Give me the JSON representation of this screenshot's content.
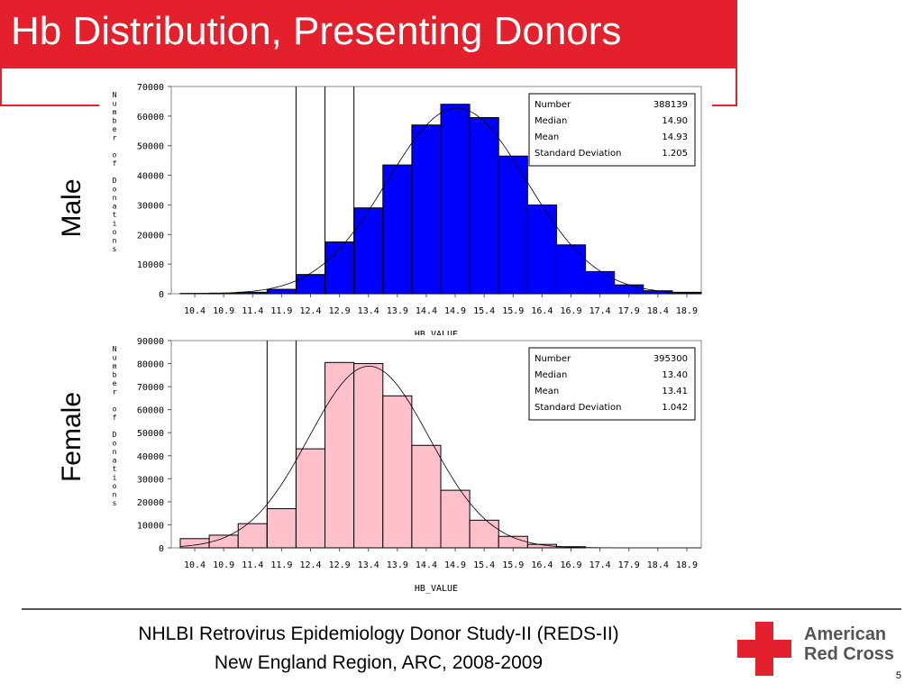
{
  "slide": {
    "title": "Hb Distribution, Presenting Donors",
    "footer_line1": "NHLBI Retrovirus Epidemiology Donor Study-II (REDS-II)",
    "footer_line2": "New England Region, ARC, 2008-2009",
    "logo_line1": "American",
    "logo_line2": "Red Cross",
    "page_number": "5"
  },
  "colors": {
    "title_bar": "#e4202c",
    "male_bars": "#0000ff",
    "female_bars": "#ffc0cb"
  },
  "chart_data": [
    {
      "type": "bar",
      "panel_label": "Male",
      "xlabel": "HB VALUE",
      "ylabel": "Number of Donations",
      "ylim": [
        0,
        70000
      ],
      "yticks": [
        0,
        10000,
        20000,
        30000,
        40000,
        50000,
        60000,
        70000
      ],
      "categories": [
        "10.4",
        "10.9",
        "11.4",
        "11.9",
        "12.4",
        "12.9",
        "13.4",
        "13.9",
        "14.4",
        "14.9",
        "15.4",
        "15.9",
        "16.4",
        "16.9",
        "17.4",
        "17.9",
        "18.4",
        "18.9"
      ],
      "values": [
        100,
        200,
        500,
        1500,
        6500,
        17500,
        29000,
        43500,
        57000,
        64000,
        59500,
        46500,
        30000,
        16500,
        7500,
        3000,
        1000,
        500
      ],
      "reference_lines": [
        12.4,
        12.9,
        13.4
      ],
      "fitted_curve": {
        "distribution": "normal",
        "mean": 14.93,
        "sd": 1.205
      },
      "stats": [
        {
          "label": "Number",
          "value": "388139"
        },
        {
          "label": "Median",
          "value": "14.90"
        },
        {
          "label": "Mean",
          "value": "14.93"
        },
        {
          "label": "Standard Deviation",
          "value": "1.205"
        }
      ]
    },
    {
      "type": "bar",
      "panel_label": "Female",
      "xlabel": "HB_VALUE",
      "ylabel": "Number of Donations",
      "ylim": [
        0,
        90000
      ],
      "yticks": [
        0,
        10000,
        20000,
        30000,
        40000,
        50000,
        60000,
        70000,
        80000,
        90000
      ],
      "categories": [
        "10.4",
        "10.9",
        "11.4",
        "11.9",
        "12.4",
        "12.9",
        "13.4",
        "13.9",
        "14.4",
        "14.9",
        "15.4",
        "15.9",
        "16.4",
        "16.9",
        "17.4",
        "17.9",
        "18.4",
        "18.9"
      ],
      "values": [
        4000,
        5500,
        10500,
        17000,
        43000,
        80500,
        80000,
        66000,
        44500,
        25000,
        12000,
        5000,
        1500,
        500,
        0,
        0,
        0,
        0
      ],
      "reference_lines": [
        11.9,
        12.4
      ],
      "fitted_curve": {
        "distribution": "normal",
        "mean": 13.41,
        "sd": 1.042
      },
      "stats": [
        {
          "label": "Number",
          "value": "395300"
        },
        {
          "label": "Median",
          "value": "13.40"
        },
        {
          "label": "Mean",
          "value": "13.41"
        },
        {
          "label": "Standard Deviation",
          "value": "1.042"
        }
      ]
    }
  ]
}
